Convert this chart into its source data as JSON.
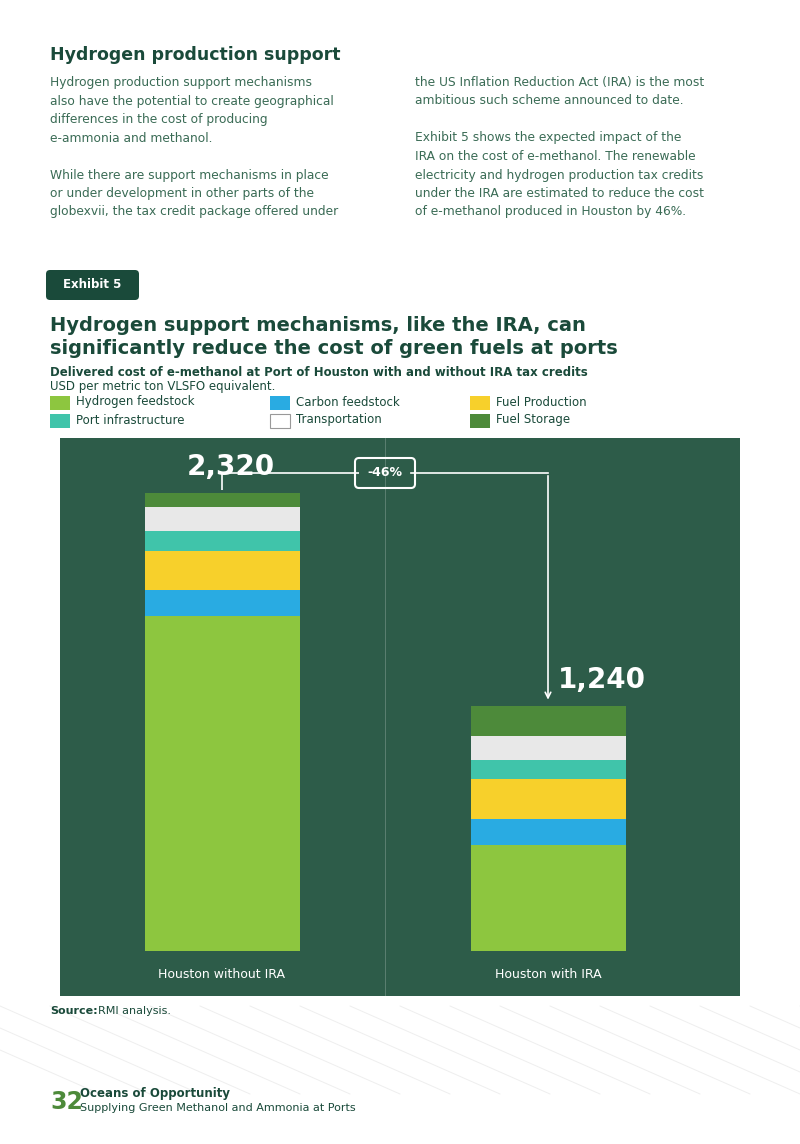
{
  "title_section": "Hydrogen production support",
  "body_text_left": "Hydrogen production support mechanisms\nalso have the potential to create geographical\ndifferences in the cost of producing\ne-ammonia and methanol.\n\nWhile there are support mechanisms in place\nor under development in other parts of the\nglobeˣᴵᴵᴵ, the tax credit package offered under",
  "body_text_right": "the US Inflation Reduction Act (IRA) is the most\nambitious such scheme announced to date.\n\nExhibit 5 shows the expected impact of the\nIRA on the cost of e-methanol. The renewable\nelectricity and hydrogen production tax credits\nunder the IRA are estimated to reduce the cost\nof e-methanol produced in Houston by 46%.",
  "exhibit_label": "Exhibit 5",
  "chart_title": "Hydrogen support mechanisms, like the IRA, can\nsignificantly reduce the cost of green fuels at ports",
  "chart_subtitle_bold": "Delivered cost of e-methanol at Port of Houston with and without IRA tax credits",
  "chart_subtitle_normal": "USD per metric ton VLSFO equivalent.",
  "legend_items": [
    {
      "label": "Hydrogen feedstock",
      "color": "#8dc63f"
    },
    {
      "label": "Carbon feedstock",
      "color": "#29abe2"
    },
    {
      "label": "Fuel Production",
      "color": "#f7d02b"
    },
    {
      "label": "Port infrastructure",
      "color": "#40c4aa"
    },
    {
      "label": "Transportation",
      "color": "#ffffff"
    },
    {
      "label": "Fuel Storage",
      "color": "#4d8a3a"
    }
  ],
  "bar_background": "#2d5c49",
  "bar_data": {
    "houston_without_ira": {
      "label": "Houston without IRA",
      "total": 2320,
      "segments": [
        {
          "name": "Hydrogen feedstock",
          "value": 1700,
          "color": "#8dc63f"
        },
        {
          "name": "Carbon feedstock",
          "value": 130,
          "color": "#29abe2"
        },
        {
          "name": "Fuel Production",
          "value": 200,
          "color": "#f7d02b"
        },
        {
          "name": "Port infrastructure",
          "value": 100,
          "color": "#40c4aa"
        },
        {
          "name": "Transportation",
          "value": 120,
          "color": "#e8e8e8"
        },
        {
          "name": "Fuel Storage",
          "value": 70,
          "color": "#4d8a3a"
        }
      ]
    },
    "houston_with_ira": {
      "label": "Houston with IRA",
      "total": 1240,
      "segments": [
        {
          "name": "Hydrogen feedstock",
          "value": 540,
          "color": "#8dc63f"
        },
        {
          "name": "Carbon feedstock",
          "value": 130,
          "color": "#29abe2"
        },
        {
          "name": "Fuel Production",
          "value": 200,
          "color": "#f7d02b"
        },
        {
          "name": "Port infrastructure",
          "value": 100,
          "color": "#40c4aa"
        },
        {
          "name": "Transportation",
          "value": 120,
          "color": "#e8e8e8"
        },
        {
          "name": "Fuel Storage",
          "value": 150,
          "color": "#4d8a3a"
        }
      ]
    }
  },
  "annotation_text": "-46%",
  "source_bold": "Source:",
  "source_normal": " RMI analysis.",
  "page_number": "32",
  "page_subtitle_bold": "Oceans of Opportunity",
  "page_subtitle_normal": "Supplying Green Methanol and Ammonia at Ports",
  "bg_color": "#ffffff",
  "dark_green": "#1a4a3a",
  "text_green": "#3a6b55"
}
